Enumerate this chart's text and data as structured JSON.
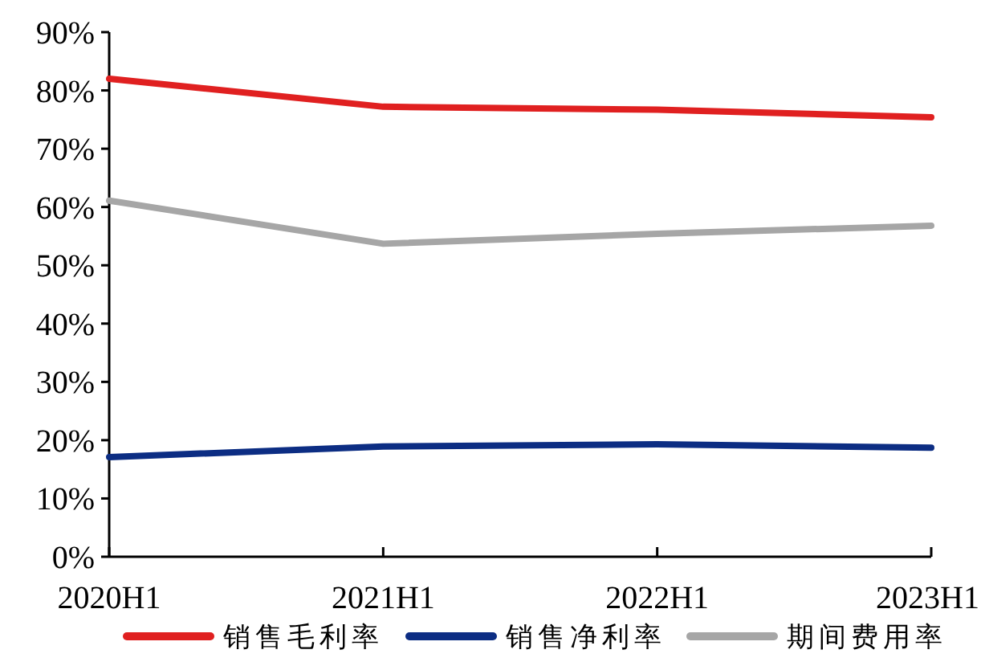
{
  "chart_data": {
    "type": "line",
    "categories": [
      "2020H1",
      "2021H1",
      "2022H1",
      "2023H1"
    ],
    "series": [
      {
        "name": "销售毛利率",
        "color": "#e02020",
        "values": [
          82,
          77.2,
          76.7,
          75.4
        ]
      },
      {
        "name": "销售净利率",
        "color": "#0c2d83",
        "values": [
          17.1,
          18.9,
          19.3,
          18.7
        ]
      },
      {
        "name": "期间费用率",
        "color": "#a6a6a6",
        "values": [
          61.1,
          53.7,
          55.4,
          56.8
        ]
      }
    ],
    "ylim": [
      0,
      90
    ],
    "yticks": [
      {
        "value": 0,
        "label": "0%"
      },
      {
        "value": 10,
        "label": "10%"
      },
      {
        "value": 20,
        "label": "20%"
      },
      {
        "value": 30,
        "label": "30%"
      },
      {
        "value": 40,
        "label": "40%"
      },
      {
        "value": 50,
        "label": "50%"
      },
      {
        "value": 60,
        "label": "60%"
      },
      {
        "value": 70,
        "label": "70%"
      },
      {
        "value": 80,
        "label": "80%"
      },
      {
        "value": 90,
        "label": "90%"
      }
    ],
    "grid": false,
    "legend": "bottom",
    "marker": "none",
    "line_style": "solid"
  }
}
